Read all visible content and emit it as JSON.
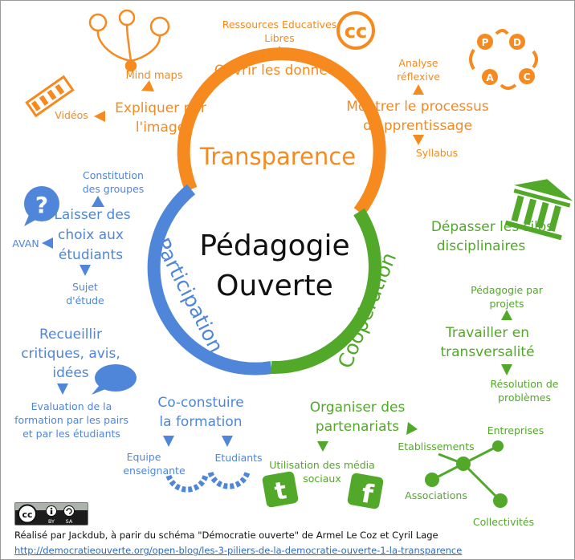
{
  "colors": {
    "orange": "#f68a1e",
    "blue": "#4f86d9",
    "green": "#52a829",
    "dark": "#111111"
  },
  "center": {
    "line1": "Pédagogie",
    "line2": "Ouverte"
  },
  "pillars": {
    "transparence": {
      "title": "Transparence",
      "topic1": {
        "line1": "Expliquer par",
        "line2": "l'image"
      },
      "mindmaps": "Mind maps",
      "videos": "Vidéos",
      "topic2": "Ouvrir les données",
      "rel": {
        "line1": "Ressources Educatives",
        "line2": "Libres"
      },
      "cc_icon_text": "cc",
      "topic3": {
        "line1": "Montrer le processus",
        "line2": "d'apprentissage"
      },
      "analyse": {
        "line1": "Analyse",
        "line2": "réflexive"
      },
      "syllabus": "Syllabus",
      "pdca": [
        "P",
        "D",
        "C",
        "A"
      ]
    },
    "participation": {
      "title": "Participation",
      "topic1": {
        "line1": "Laisser des",
        "line2": "choix aux",
        "line3": "étudiants"
      },
      "groupes": {
        "line1": "Constitution",
        "line2": "des groupes"
      },
      "avan": "AVAN",
      "sujet": {
        "line1": "Sujet",
        "line2": "d'étude"
      },
      "topic2": {
        "line1": "Recueillir",
        "line2": "critiques, avis,",
        "line3": "idées"
      },
      "evaluation": {
        "line1": "Evaluation de la",
        "line2": "formation par les pairs",
        "line3": "et par les étudiants"
      },
      "topic3": {
        "line1": "Co-constuire",
        "line2": "la formation"
      },
      "equipe": {
        "line1": "Equipe",
        "line2": "enseignante"
      },
      "etudiants": "Etudiants"
    },
    "cooperation": {
      "title": "Coopération",
      "topic1": {
        "line1": "Dépasser les silos",
        "line2": "disciplinaires"
      },
      "projets": {
        "line1": "Pédagogie par",
        "line2": "projets"
      },
      "topic2": {
        "line1": "Travailler en",
        "line2": "transversalité"
      },
      "resolution": {
        "line1": "Résolution de",
        "line2": "problèmes"
      },
      "topic3": {
        "line1": "Organiser des",
        "line2": "partenariats"
      },
      "media": {
        "line1": "Utilisation des média",
        "line2": "sociaux"
      },
      "etablissements": "Etablissements",
      "entreprises": "Entreprises",
      "associations": "Associations",
      "collectivites": "Collectivités"
    }
  },
  "license": {
    "cc": "cc",
    "by": "BY",
    "sa": "SA"
  },
  "credit": {
    "text": "Réalisé par Jackdub, à parir du schéma \"Démocratie ouverte\" de Armel Le Coz et Cyril Lage",
    "url": "http://democratieouverte.org/open-blog/les-3-piliers-de-la-democratie-ouverte-1-la-transparence"
  }
}
